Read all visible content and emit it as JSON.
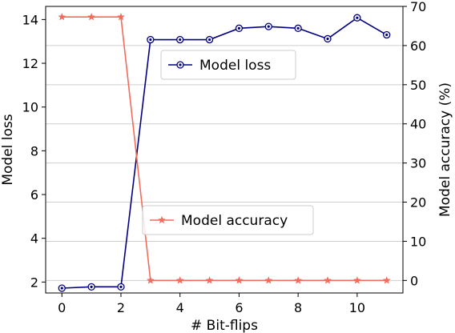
{
  "chart_data": {
    "type": "line",
    "x": [
      0,
      1,
      2,
      3,
      4,
      5,
      6,
      7,
      8,
      9,
      10,
      11
    ],
    "xlabel": "# Bit-flips",
    "xlim": [
      -0.55,
      11.55
    ],
    "xticks": [
      "0",
      "2",
      "4",
      "6",
      "8",
      "10"
    ],
    "y_left": {
      "label": "Model loss",
      "lim": [
        1.5,
        14.6
      ],
      "ticks": [
        "2",
        "4",
        "6",
        "8",
        "10",
        "12",
        "14"
      ]
    },
    "y_right": {
      "label": "Model accuracy (%)",
      "lim": [
        -3.2,
        70
      ],
      "ticks": [
        "0",
        "10",
        "20",
        "30",
        "40",
        "50",
        "60",
        "70"
      ],
      "grid": true
    },
    "series": [
      {
        "name": "Model loss",
        "axis": "left",
        "color": "#000080",
        "marker": "circle",
        "values": [
          1.72,
          1.78,
          1.78,
          13.08,
          13.08,
          13.08,
          13.6,
          13.68,
          13.6,
          13.12,
          14.08,
          13.3
        ]
      },
      {
        "name": "Model accuracy",
        "axis": "right",
        "color": "#f26b5b",
        "marker": "star",
        "values": [
          67.3,
          67.3,
          67.3,
          0,
          0,
          0,
          0,
          0,
          0,
          0,
          0,
          0
        ]
      }
    ],
    "legends": [
      {
        "series": "Model loss",
        "placement": "upper-center"
      },
      {
        "series": "Model accuracy",
        "placement": "lower-center"
      }
    ]
  }
}
